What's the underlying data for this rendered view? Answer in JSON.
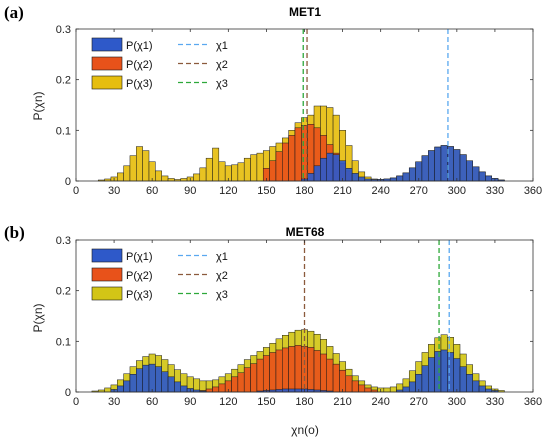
{
  "colors": {
    "chi1": "#2E59C9",
    "chi2": "#E8521A",
    "chi3": "#E6BE0F",
    "chi3_b": "#D3C516"
  },
  "chart_data": [
    {
      "type": "bar",
      "panel_label": "(a)",
      "title": "MET1",
      "xlabel": "",
      "ylabel": "P(χn)",
      "xlim": [
        0,
        360
      ],
      "ylim": [
        0,
        0.3
      ],
      "xticks": [
        "0",
        "30",
        "60",
        "90",
        "120",
        "150",
        "180",
        "210",
        "240",
        "270",
        "300",
        "330",
        "360"
      ],
      "yticks": [
        "0",
        "0.1",
        "0.2",
        "0.3"
      ],
      "grid": false,
      "legend_position": "top-left",
      "legend": {
        "bars": [
          "P(χ1)",
          "P(χ2)",
          "P(χ3)"
        ],
        "lines": [
          "χ1",
          "χ2",
          "χ3"
        ]
      },
      "bin_width": 5,
      "series": [
        {
          "name": "P(χ1)",
          "color": "#2E59C9",
          "values": [
            [
              180,
              0.004
            ],
            [
              185,
              0.015
            ],
            [
              190,
              0.03
            ],
            [
              195,
              0.045
            ],
            [
              200,
              0.055
            ],
            [
              205,
              0.052
            ],
            [
              210,
              0.04
            ],
            [
              215,
              0.025
            ],
            [
              220,
              0.015
            ],
            [
              225,
              0.008
            ],
            [
              230,
              0.004
            ],
            [
              235,
              0.003
            ],
            [
              240,
              0.003
            ],
            [
              245,
              0.004
            ],
            [
              250,
              0.006
            ],
            [
              255,
              0.01
            ],
            [
              260,
              0.016
            ],
            [
              265,
              0.026
            ],
            [
              270,
              0.038
            ],
            [
              275,
              0.05
            ],
            [
              280,
              0.06
            ],
            [
              285,
              0.067
            ],
            [
              290,
              0.07
            ],
            [
              295,
              0.068
            ],
            [
              300,
              0.062
            ],
            [
              305,
              0.052
            ],
            [
              310,
              0.04
            ],
            [
              315,
              0.028
            ],
            [
              320,
              0.018
            ],
            [
              325,
              0.01
            ],
            [
              330,
              0.005
            ],
            [
              335,
              0.002
            ]
          ]
        },
        {
          "name": "P(χ2)",
          "color": "#E8521A",
          "values": [
            [
              150,
              0.025
            ],
            [
              155,
              0.04
            ],
            [
              160,
              0.058
            ],
            [
              165,
              0.075
            ],
            [
              170,
              0.09
            ],
            [
              175,
              0.105
            ],
            [
              180,
              0.11
            ],
            [
              185,
              0.112
            ],
            [
              190,
              0.105
            ],
            [
              195,
              0.09
            ],
            [
              200,
              0.072
            ],
            [
              205,
              0.055
            ],
            [
              210,
              0.035
            ],
            [
              215,
              0.02
            ]
          ]
        },
        {
          "name": "P(χ3)",
          "color": "#E6BE0F",
          "values": [
            [
              20,
              0.002
            ],
            [
              25,
              0.004
            ],
            [
              30,
              0.008
            ],
            [
              35,
              0.016
            ],
            [
              40,
              0.03
            ],
            [
              45,
              0.05
            ],
            [
              50,
              0.068
            ],
            [
              55,
              0.06
            ],
            [
              60,
              0.038
            ],
            [
              65,
              0.02
            ],
            [
              70,
              0.01
            ],
            [
              75,
              0.005
            ],
            [
              80,
              0.003
            ],
            [
              85,
              0.005
            ],
            [
              90,
              0.008
            ],
            [
              95,
              0.014
            ],
            [
              100,
              0.026
            ],
            [
              105,
              0.045
            ],
            [
              110,
              0.065
            ],
            [
              115,
              0.038
            ],
            [
              120,
              0.03
            ],
            [
              125,
              0.032
            ],
            [
              130,
              0.036
            ],
            [
              135,
              0.045
            ],
            [
              140,
              0.052
            ],
            [
              145,
              0.055
            ],
            [
              150,
              0.06
            ],
            [
              155,
              0.068
            ],
            [
              160,
              0.075
            ],
            [
              165,
              0.085
            ],
            [
              170,
              0.1
            ],
            [
              175,
              0.115
            ],
            [
              180,
              0.125
            ],
            [
              185,
              0.13
            ],
            [
              190,
              0.148
            ],
            [
              195,
              0.148
            ],
            [
              200,
              0.145
            ],
            [
              205,
              0.13
            ],
            [
              210,
              0.1
            ],
            [
              215,
              0.07
            ],
            [
              220,
              0.04
            ],
            [
              225,
              0.018
            ],
            [
              230,
              0.008
            ],
            [
              235,
              0.004
            ],
            [
              240,
              0.003
            ],
            [
              245,
              0.004
            ],
            [
              250,
              0.006
            ],
            [
              255,
              0.01
            ],
            [
              260,
              0.016
            ],
            [
              265,
              0.026
            ],
            [
              270,
              0.038
            ],
            [
              275,
              0.05
            ],
            [
              280,
              0.06
            ],
            [
              285,
              0.067
            ],
            [
              290,
              0.07
            ],
            [
              295,
              0.068
            ],
            [
              300,
              0.062
            ],
            [
              305,
              0.052
            ],
            [
              310,
              0.04
            ],
            [
              315,
              0.028
            ],
            [
              320,
              0.018
            ],
            [
              325,
              0.01
            ],
            [
              330,
              0.005
            ],
            [
              335,
              0.002
            ]
          ]
        }
      ],
      "mean_lines": [
        {
          "name": "χ1",
          "x": 293,
          "color": "#5AA8F0"
        },
        {
          "name": "χ2",
          "x": 182,
          "color": "#8B5A3C"
        },
        {
          "name": "χ3",
          "x": 179,
          "color": "#2DA83A"
        }
      ]
    },
    {
      "type": "bar",
      "panel_label": "(b)",
      "title": "MET68",
      "xlabel": "χn(o)",
      "ylabel": "P(χn)",
      "xlim": [
        0,
        360
      ],
      "ylim": [
        0,
        0.3
      ],
      "xticks": [
        "0",
        "30",
        "60",
        "90",
        "120",
        "150",
        "180",
        "210",
        "240",
        "270",
        "300",
        "330",
        "360"
      ],
      "yticks": [
        "0",
        "0.1",
        "0.2",
        "0.3"
      ],
      "grid": false,
      "legend_position": "top-left",
      "legend": {
        "bars": [
          "P(χ1)",
          "P(χ2)",
          "P(χ3)"
        ],
        "lines": [
          "χ1",
          "χ2",
          "χ3"
        ]
      },
      "bin_width": 5,
      "series": [
        {
          "name": "P(χ1)",
          "color": "#2E59C9",
          "values": [
            [
              30,
              0.005
            ],
            [
              35,
              0.012
            ],
            [
              40,
              0.022
            ],
            [
              45,
              0.035
            ],
            [
              50,
              0.046
            ],
            [
              55,
              0.053
            ],
            [
              60,
              0.055
            ],
            [
              65,
              0.05
            ],
            [
              70,
              0.04
            ],
            [
              75,
              0.03
            ],
            [
              80,
              0.02
            ],
            [
              85,
              0.012
            ],
            [
              90,
              0.007
            ],
            [
              95,
              0.004
            ],
            [
              100,
              0.002
            ],
            [
              145,
              0.002
            ],
            [
              150,
              0.003
            ],
            [
              155,
              0.004
            ],
            [
              160,
              0.005
            ],
            [
              165,
              0.006
            ],
            [
              170,
              0.006
            ],
            [
              175,
              0.006
            ],
            [
              180,
              0.006
            ],
            [
              185,
              0.005
            ],
            [
              190,
              0.004
            ],
            [
              195,
              0.003
            ],
            [
              200,
              0.002
            ],
            [
              255,
              0.004
            ],
            [
              260,
              0.01
            ],
            [
              265,
              0.02
            ],
            [
              270,
              0.035
            ],
            [
              275,
              0.052
            ],
            [
              280,
              0.068
            ],
            [
              285,
              0.08
            ],
            [
              290,
              0.083
            ],
            [
              295,
              0.078
            ],
            [
              300,
              0.066
            ],
            [
              305,
              0.05
            ],
            [
              310,
              0.035
            ],
            [
              315,
              0.022
            ],
            [
              320,
              0.012
            ],
            [
              325,
              0.006
            ],
            [
              330,
              0.003
            ]
          ]
        },
        {
          "name": "P(χ2)",
          "color": "#E8521A",
          "values": [
            [
              100,
              0.003
            ],
            [
              105,
              0.006
            ],
            [
              110,
              0.01
            ],
            [
              115,
              0.016
            ],
            [
              120,
              0.022
            ],
            [
              125,
              0.03
            ],
            [
              130,
              0.038
            ],
            [
              135,
              0.048
            ],
            [
              140,
              0.056
            ],
            [
              145,
              0.065
            ],
            [
              150,
              0.072
            ],
            [
              155,
              0.078
            ],
            [
              160,
              0.083
            ],
            [
              165,
              0.087
            ],
            [
              170,
              0.09
            ],
            [
              175,
              0.092
            ],
            [
              180,
              0.09
            ],
            [
              185,
              0.088
            ],
            [
              190,
              0.082
            ],
            [
              195,
              0.075
            ],
            [
              200,
              0.065
            ],
            [
              205,
              0.055
            ],
            [
              210,
              0.043
            ],
            [
              215,
              0.032
            ],
            [
              220,
              0.022
            ],
            [
              225,
              0.014
            ],
            [
              230,
              0.008
            ],
            [
              235,
              0.004
            ]
          ]
        },
        {
          "name": "P(χ3)",
          "color": "#D3C516",
          "values": [
            [
              15,
              0.002
            ],
            [
              20,
              0.004
            ],
            [
              25,
              0.008
            ],
            [
              30,
              0.014
            ],
            [
              35,
              0.024
            ],
            [
              40,
              0.036
            ],
            [
              45,
              0.05
            ],
            [
              50,
              0.062
            ],
            [
              55,
              0.07
            ],
            [
              60,
              0.075
            ],
            [
              65,
              0.072
            ],
            [
              70,
              0.064
            ],
            [
              75,
              0.054
            ],
            [
              80,
              0.044
            ],
            [
              85,
              0.036
            ],
            [
              90,
              0.03
            ],
            [
              95,
              0.026
            ],
            [
              100,
              0.022
            ],
            [
              105,
              0.022
            ],
            [
              110,
              0.024
            ],
            [
              115,
              0.03
            ],
            [
              120,
              0.036
            ],
            [
              125,
              0.045
            ],
            [
              130,
              0.054
            ],
            [
              135,
              0.064
            ],
            [
              140,
              0.072
            ],
            [
              145,
              0.08
            ],
            [
              150,
              0.088
            ],
            [
              155,
              0.096
            ],
            [
              160,
              0.105
            ],
            [
              165,
              0.112
            ],
            [
              170,
              0.118
            ],
            [
              175,
              0.122
            ],
            [
              180,
              0.123
            ],
            [
              185,
              0.12
            ],
            [
              190,
              0.114
            ],
            [
              195,
              0.104
            ],
            [
              200,
              0.09
            ],
            [
              205,
              0.076
            ],
            [
              210,
              0.06
            ],
            [
              215,
              0.045
            ],
            [
              220,
              0.032
            ],
            [
              225,
              0.022
            ],
            [
              230,
              0.014
            ],
            [
              235,
              0.01
            ],
            [
              240,
              0.008
            ],
            [
              245,
              0.008
            ],
            [
              250,
              0.01
            ],
            [
              255,
              0.016
            ],
            [
              260,
              0.026
            ],
            [
              265,
              0.042
            ],
            [
              270,
              0.06
            ],
            [
              275,
              0.078
            ],
            [
              280,
              0.094
            ],
            [
              285,
              0.107
            ],
            [
              290,
              0.113
            ],
            [
              295,
              0.108
            ],
            [
              300,
              0.094
            ],
            [
              305,
              0.075
            ],
            [
              310,
              0.054
            ],
            [
              315,
              0.036
            ],
            [
              320,
              0.022
            ],
            [
              325,
              0.012
            ],
            [
              330,
              0.006
            ],
            [
              335,
              0.003
            ]
          ]
        }
      ],
      "mean_lines": [
        {
          "name": "χ1",
          "x": 294,
          "color": "#5AA8F0"
        },
        {
          "name": "χ2",
          "x": 180,
          "color": "#8B5A3C"
        },
        {
          "name": "χ3",
          "x": 286,
          "color": "#2DA83A"
        }
      ]
    }
  ]
}
